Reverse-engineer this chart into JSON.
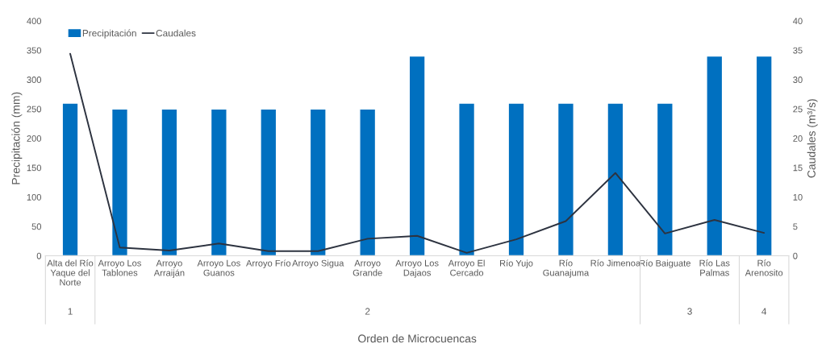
{
  "chart_data": {
    "type": "bar",
    "xlabel": "Orden de Microcuencas",
    "ylabel": "Precipitación (mm)",
    "y2label": "Caudales (m³/s)",
    "categories": [
      "Alta del Río Yaque del Norte",
      "Arroyo Los Tablones",
      "Arroyo Arraiján",
      "Arroyo Los Guanos",
      "Arroyo Frío",
      "Arroyo Sigua",
      "Arroyo Grande",
      "Arroyo Los Dajaos",
      "Arroyo El Cercado",
      "Río Yujo",
      "Río Guanajuma",
      "Río Jimenoa",
      "Río Baiguate",
      "Río Las Palmas",
      "Río Arenosito"
    ],
    "series": [
      {
        "name": "Precipitación",
        "color": "#0070c0",
        "values": [
          260,
          250,
          250,
          250,
          250,
          250,
          250,
          340,
          260,
          260,
          260,
          260,
          260,
          340,
          340
        ]
      },
      {
        "name": "Caudales",
        "type": "line",
        "axis": "y2",
        "color": "#2d3340",
        "values": [
          34.4,
          1.4,
          0.9,
          2.1,
          0.8,
          0.8,
          2.9,
          3.4,
          0.5,
          2.8,
          5.9,
          14.1,
          3.8,
          6.1,
          3.9
        ]
      }
    ],
    "ylim": [
      0,
      400
    ],
    "yticks": [
      0,
      50,
      100,
      150,
      200,
      250,
      300,
      350,
      400
    ],
    "y2lim": [
      0,
      40
    ],
    "y2ticks": [
      0,
      5,
      10,
      15,
      20,
      25,
      30,
      35,
      40
    ],
    "legend": "top left",
    "grid": false,
    "annotations": [
      "1",
      "2",
      "3",
      "4"
    ]
  }
}
